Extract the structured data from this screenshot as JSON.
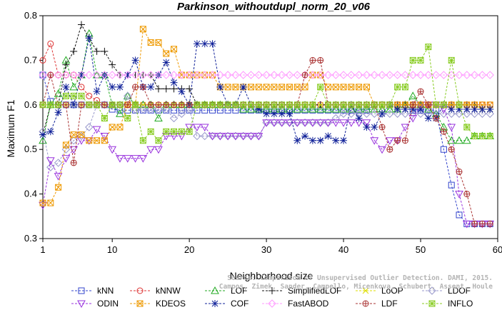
{
  "chart_data": {
    "type": "line",
    "title": "Parkinson_withoutdupl_norm_20_v06",
    "xlabel": "Neighborhood size",
    "ylabel": "Maximum F1",
    "xlim": [
      1,
      60
    ],
    "ylim": [
      0.3,
      0.8
    ],
    "xticks": [
      1,
      10,
      20,
      30,
      40,
      50,
      60
    ],
    "yticks": [
      0.3,
      0.4,
      0.5,
      0.6,
      0.7,
      0.8
    ],
    "legend_position": "bottom",
    "watermark": [
      "Source: Comparison of Unsupervised Outlier Detection. DAMI, 2015.",
      "Campos, Zimek, Sander, Campello, Micenkova, Schubert, Assent, Houle"
    ],
    "series": [
      {
        "name": "kNN",
        "color": "#3344cc",
        "marker": "square",
        "values": [
          0.667,
          0.608,
          0.6,
          0.6,
          0.6,
          0.6,
          0.6,
          0.6,
          0.6,
          0.59,
          0.588,
          0.588,
          0.588,
          0.588,
          0.588,
          0.588,
          0.588,
          0.588,
          0.588,
          0.588,
          0.588,
          0.588,
          0.588,
          0.588,
          0.588,
          0.588,
          0.588,
          0.588,
          0.588,
          0.588,
          0.588,
          0.588,
          0.588,
          0.588,
          0.588,
          0.588,
          0.588,
          0.588,
          0.588,
          0.588,
          0.588,
          0.588,
          0.588,
          0.6,
          0.6,
          0.6,
          0.6,
          0.6,
          0.588,
          0.588,
          0.588,
          0.588,
          0.5,
          0.42,
          0.353,
          0.333,
          0.333,
          0.333,
          0.333
        ]
      },
      {
        "name": "kNNW",
        "color": "#dd3333",
        "marker": "circle",
        "values": [
          0.7,
          0.737,
          0.667,
          0.667,
          0.667,
          0.64,
          0.62,
          0.61,
          0.6,
          0.6,
          0.6,
          0.6,
          0.6,
          0.6,
          0.6,
          0.6,
          0.6,
          0.6,
          0.6,
          0.6,
          0.6,
          0.6,
          0.6,
          0.6,
          0.6,
          0.6,
          0.6,
          0.6,
          0.6,
          0.6,
          0.6,
          0.6,
          0.6,
          0.6,
          0.6,
          0.6,
          0.6,
          0.6,
          0.6,
          0.6,
          0.6,
          0.6,
          0.6,
          0.6,
          0.6,
          0.6,
          0.6,
          0.6,
          0.6,
          0.6,
          0.6,
          0.6,
          0.6,
          0.6,
          0.6,
          0.6,
          0.6,
          0.6,
          0.6
        ]
      },
      {
        "name": "LOF",
        "color": "#22aa22",
        "marker": "triangle",
        "values": [
          0.52,
          0.6,
          0.625,
          0.7,
          0.64,
          0.667,
          0.76,
          0.667,
          0.667,
          0.6,
          0.58,
          0.62,
          0.6,
          0.6,
          0.6,
          0.57,
          0.6,
          0.6,
          0.6,
          0.6,
          0.6,
          0.6,
          0.6,
          0.6,
          0.6,
          0.6,
          0.59,
          0.59,
          0.59,
          0.59,
          0.59,
          0.59,
          0.59,
          0.59,
          0.59,
          0.59,
          0.59,
          0.59,
          0.59,
          0.59,
          0.59,
          0.59,
          0.59,
          0.59,
          0.59,
          0.59,
          0.59,
          0.6,
          0.62,
          0.6,
          0.59,
          0.58,
          0.55,
          0.52,
          0.52,
          0.52,
          0.53,
          0.53,
          0.53
        ]
      },
      {
        "name": "SimplifiedLOF",
        "color": "#111111",
        "marker": "plus",
        "values": [
          0.533,
          0.6,
          0.6,
          0.69,
          0.72,
          0.78,
          0.75,
          0.72,
          0.72,
          0.69,
          0.667,
          0.667,
          0.667,
          0.667,
          0.667,
          0.636,
          0.636,
          0.636,
          0.636,
          0.636,
          0.6,
          0.6,
          0.6,
          0.6,
          0.6,
          0.6,
          0.6,
          0.6,
          0.6,
          0.6,
          0.6,
          0.6,
          0.6,
          0.6,
          0.6,
          0.6,
          0.6,
          0.6,
          0.6,
          0.6,
          0.6,
          0.6,
          0.6,
          0.6,
          0.6,
          0.6,
          0.6,
          0.6,
          0.6,
          0.6,
          0.6,
          0.6,
          0.6,
          0.6,
          0.6,
          0.6,
          0.6,
          0.59,
          0.59
        ]
      },
      {
        "name": "LoOP",
        "color": "#dddd00",
        "marker": "cross",
        "values": [
          0.6,
          0.6,
          0.6,
          0.6,
          0.6,
          0.6,
          0.6,
          0.6,
          0.6,
          0.6,
          0.6,
          0.6,
          0.6,
          0.6,
          0.6,
          0.6,
          0.6,
          0.6,
          0.6,
          0.6,
          0.6,
          0.6,
          0.6,
          0.6,
          0.6,
          0.6,
          0.6,
          0.6,
          0.6,
          0.6,
          0.6,
          0.6,
          0.6,
          0.6,
          0.6,
          0.6,
          0.6,
          0.6,
          0.6,
          0.6,
          0.6,
          0.6,
          0.6,
          0.6,
          0.6,
          0.6,
          0.6,
          0.6,
          0.6,
          0.6,
          0.6,
          0.6,
          0.6,
          0.6,
          0.6,
          0.6,
          0.6,
          0.59,
          0.59
        ]
      },
      {
        "name": "LDOF",
        "color": "#9999cc",
        "marker": "diamond",
        "values": [
          0.54,
          0.46,
          0.47,
          0.5,
          0.52,
          0.53,
          0.55,
          0.6,
          0.6,
          0.6,
          0.6,
          0.62,
          0.59,
          0.59,
          0.59,
          0.59,
          0.59,
          0.57,
          0.58,
          0.59,
          0.53,
          0.53,
          0.53,
          0.53,
          0.53,
          0.53,
          0.53,
          0.53,
          0.53,
          0.56,
          0.56,
          0.56,
          0.56,
          0.56,
          0.56,
          0.56,
          0.56,
          0.56,
          0.57,
          0.58,
          0.58,
          0.58,
          0.58,
          0.58,
          0.58,
          0.58,
          0.58,
          0.58,
          0.58,
          0.58,
          0.58,
          0.58,
          0.58,
          0.58,
          0.58,
          0.58,
          0.58,
          0.58,
          0.58
        ]
      },
      {
        "name": "ODIN",
        "color": "#9933dd",
        "marker": "triangle-down",
        "values": [
          0.375,
          0.475,
          0.44,
          0.48,
          0.5,
          0.52,
          0.52,
          0.545,
          0.53,
          0.5,
          0.48,
          0.48,
          0.48,
          0.48,
          0.5,
          0.5,
          0.53,
          0.53,
          0.53,
          0.55,
          0.55,
          0.55,
          0.53,
          0.53,
          0.53,
          0.53,
          0.53,
          0.53,
          0.53,
          0.56,
          0.56,
          0.56,
          0.56,
          0.56,
          0.56,
          0.56,
          0.56,
          0.56,
          0.56,
          0.56,
          0.56,
          0.56,
          0.56,
          0.52,
          0.5,
          0.52,
          0.52,
          0.55,
          0.57,
          0.6,
          0.6,
          0.6,
          0.59,
          0.55,
          0.4,
          0.333,
          0.333,
          0.333,
          0.333
        ]
      },
      {
        "name": "KDEOS",
        "color": "#ee9900",
        "marker": "square-x",
        "values": [
          0.38,
          0.38,
          0.415,
          0.51,
          0.533,
          0.533,
          0.52,
          0.52,
          0.52,
          0.55,
          0.55,
          0.6,
          0.6,
          0.77,
          0.74,
          0.74,
          0.715,
          0.725,
          0.667,
          0.667,
          0.667,
          0.667,
          0.667,
          0.64,
          0.64,
          0.64,
          0.64,
          0.64,
          0.64,
          0.64,
          0.64,
          0.64,
          0.64,
          0.64,
          0.64,
          0.667,
          0.667,
          0.64,
          0.64,
          0.64,
          0.64,
          0.64,
          0.64,
          0.6,
          0.6,
          0.6,
          0.6,
          0.6,
          0.6,
          0.6,
          0.6,
          0.6,
          0.6,
          0.6,
          0.6,
          0.6,
          0.6,
          0.6,
          0.6
        ]
      },
      {
        "name": "COF",
        "color": "#112299",
        "marker": "star",
        "values": [
          0.533,
          0.54,
          0.583,
          0.64,
          0.6,
          0.667,
          0.75,
          0.63,
          0.667,
          0.64,
          0.64,
          0.667,
          0.7,
          0.64,
          0.64,
          0.667,
          0.695,
          0.65,
          0.63,
          0.6,
          0.737,
          0.737,
          0.737,
          0.64,
          0.6,
          0.6,
          0.64,
          0.6,
          0.59,
          0.58,
          0.58,
          0.58,
          0.58,
          0.52,
          0.53,
          0.52,
          0.52,
          0.53,
          0.52,
          0.52,
          0.6,
          0.57,
          0.55,
          0.55,
          0.58,
          0.6,
          0.59,
          0.59,
          0.59,
          0.59,
          0.57,
          0.57,
          0.6,
          0.59,
          0.59,
          0.59,
          0.59,
          0.59,
          0.59
        ]
      },
      {
        "name": "FastABOD",
        "color": "#ff99ff",
        "marker": "diamond",
        "values": [
          0.667,
          0.667,
          0.667,
          0.667,
          0.667,
          0.667,
          0.667,
          0.667,
          0.667,
          0.667,
          0.667,
          0.667,
          0.667,
          0.667,
          0.667,
          0.667,
          0.667,
          0.667,
          0.667,
          0.667,
          0.667,
          0.667,
          0.667,
          0.667,
          0.667,
          0.667,
          0.667,
          0.667,
          0.667,
          0.667,
          0.667,
          0.667,
          0.667,
          0.667,
          0.667,
          0.667,
          0.667,
          0.667,
          0.667,
          0.667,
          0.667,
          0.667,
          0.667,
          0.667,
          0.667,
          0.667,
          0.667,
          0.667,
          0.667,
          0.667,
          0.667,
          0.667,
          0.667,
          0.667,
          0.667,
          0.667,
          0.667,
          0.667,
          0.667
        ]
      },
      {
        "name": "LDF",
        "color": "#aa3333",
        "marker": "circle-plus",
        "values": [
          0.6,
          0.667,
          0.6,
          0.6,
          0.47,
          0.6,
          0.6,
          0.6,
          0.6,
          0.6,
          0.6,
          0.6,
          0.64,
          0.64,
          0.6,
          0.6,
          0.6,
          0.6,
          0.6,
          0.6,
          0.6,
          0.6,
          0.6,
          0.6,
          0.6,
          0.6,
          0.6,
          0.6,
          0.6,
          0.6,
          0.6,
          0.6,
          0.6,
          0.6,
          0.667,
          0.7,
          0.7,
          0.6,
          0.6,
          0.6,
          0.6,
          0.6,
          0.6,
          0.6,
          0.55,
          0.5,
          0.52,
          0.52,
          0.6,
          0.63,
          0.6,
          0.57,
          0.54,
          0.5,
          0.45,
          0.4,
          0.333,
          0.333,
          0.333
        ]
      },
      {
        "name": "INFLO",
        "color": "#88cc22",
        "marker": "asterisk",
        "values": [
          0.6,
          0.6,
          0.6,
          0.62,
          0.62,
          0.62,
          0.6,
          0.6,
          0.57,
          0.6,
          0.6,
          0.57,
          0.6,
          0.52,
          0.54,
          0.52,
          0.54,
          0.54,
          0.54,
          0.54,
          0.6,
          0.6,
          0.6,
          0.6,
          0.6,
          0.6,
          0.6,
          0.6,
          0.6,
          0.6,
          0.6,
          0.6,
          0.6,
          0.6,
          0.6,
          0.6,
          0.64,
          0.6,
          0.6,
          0.6,
          0.6,
          0.6,
          0.6,
          0.6,
          0.6,
          0.6,
          0.64,
          0.64,
          0.7,
          0.7,
          0.73,
          0.6,
          0.6,
          0.7,
          0.6,
          0.55,
          0.53,
          0.53,
          0.53
        ]
      }
    ]
  }
}
